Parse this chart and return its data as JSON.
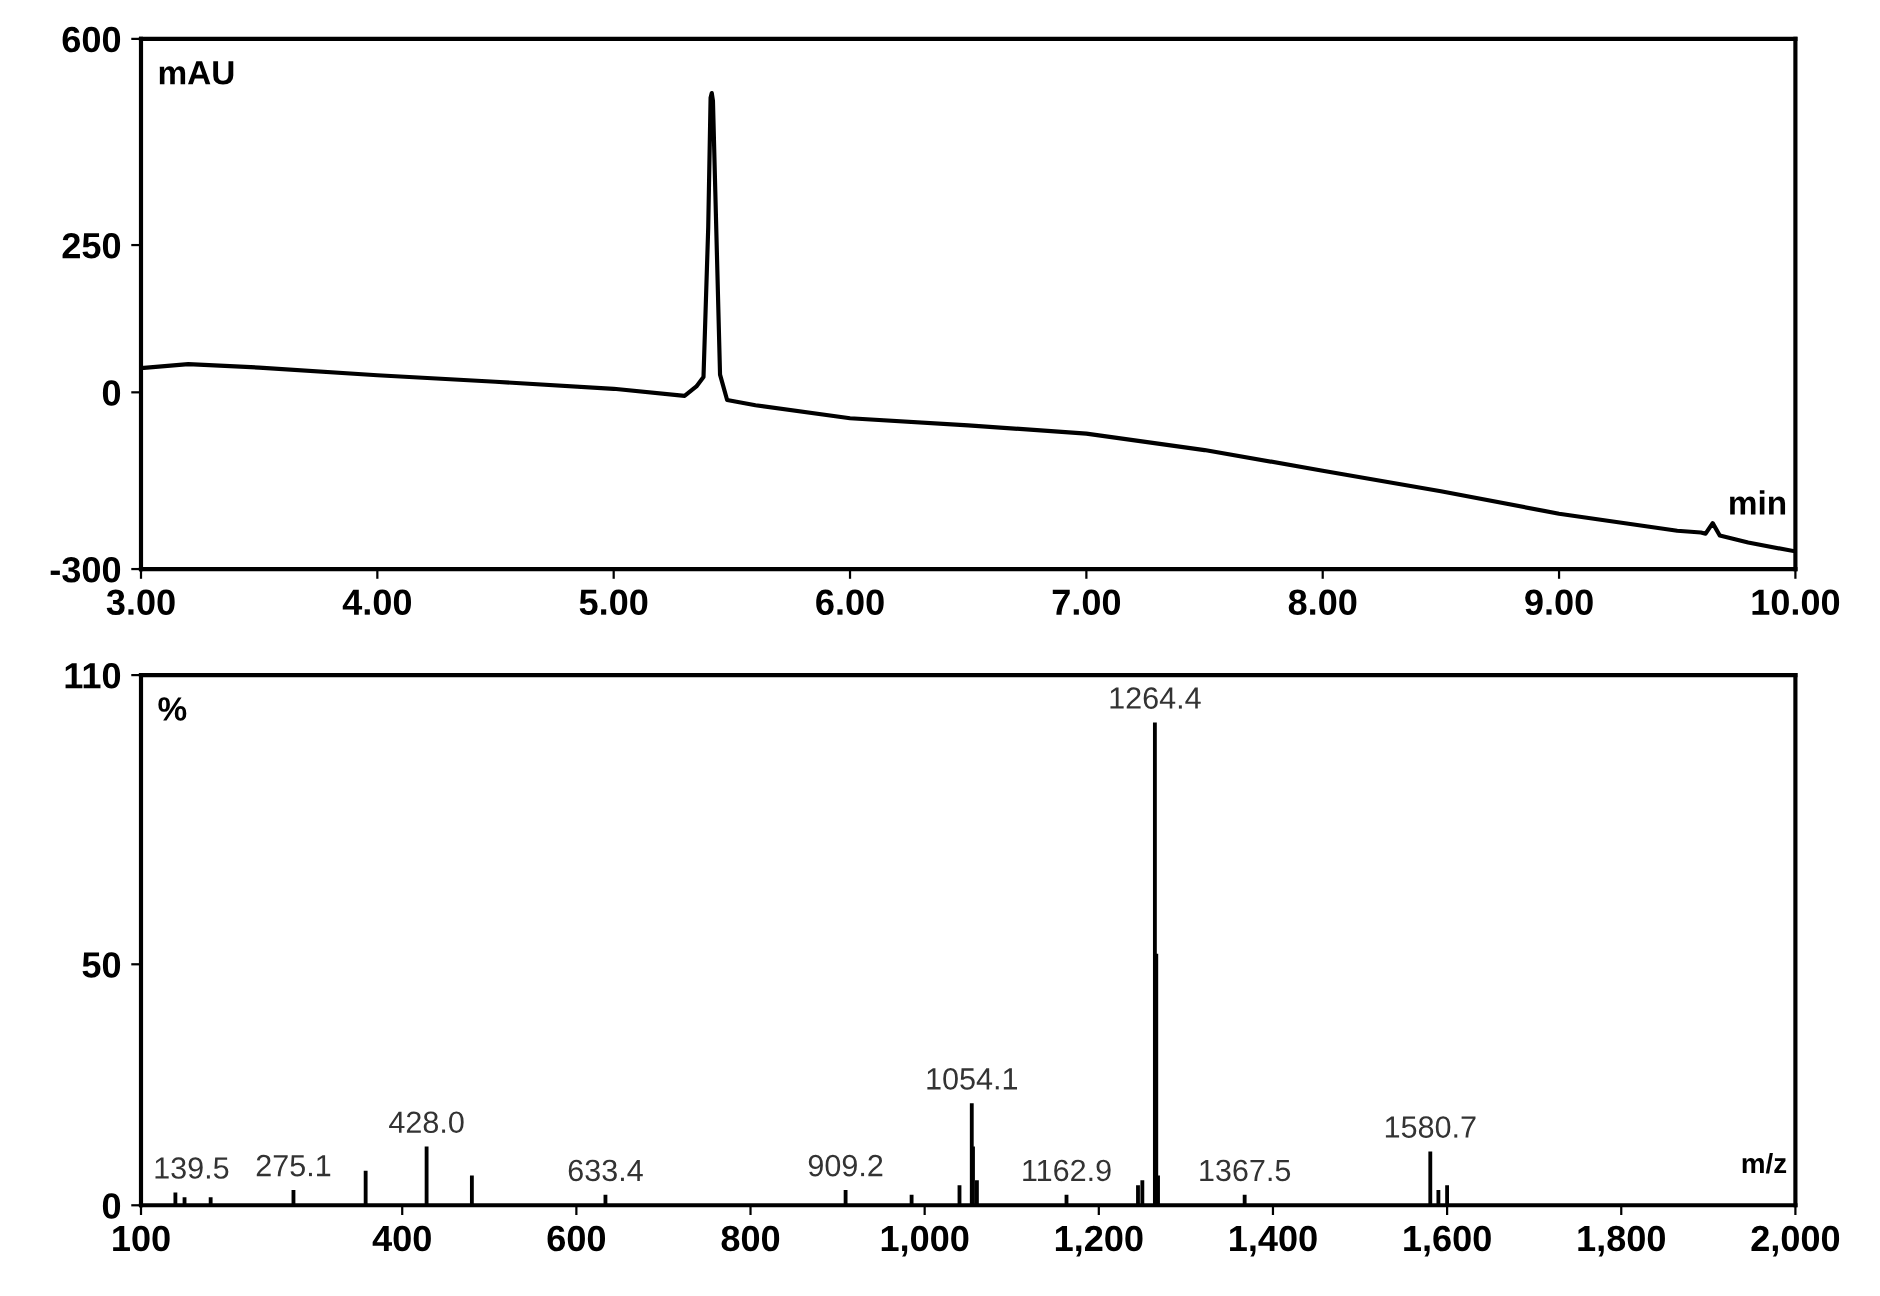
{
  "chart_data": [
    {
      "type": "line",
      "ylabel": "mAU",
      "xlabel": "min",
      "x": [
        3.0,
        3.2,
        3.5,
        4.0,
        4.5,
        5.0,
        5.3,
        5.35,
        5.38,
        5.4,
        5.41,
        5.415,
        5.42,
        5.43,
        5.45,
        5.48,
        5.6,
        6.0,
        6.5,
        7.0,
        7.5,
        8.0,
        8.5,
        9.0,
        9.5,
        9.6,
        9.62,
        9.65,
        9.68,
        9.8,
        10.0
      ],
      "series": [
        {
          "color": "#000000",
          "values": [
            41,
            48,
            42,
            29,
            18,
            6,
            -6,
            10,
            26,
            280,
            500,
            508,
            495,
            340,
            30,
            -13,
            -22,
            -44,
            -56,
            -70,
            -98,
            -133,
            -168,
            -206,
            -235,
            -238,
            -240,
            -222,
            -243,
            -255,
            -270
          ]
        }
      ],
      "xlim": [
        3.0,
        10.0
      ],
      "ylim": [
        -300,
        600
      ],
      "xticks": [
        {
          "value": 3,
          "label": "3.00"
        },
        {
          "value": 4,
          "label": "4.00"
        },
        {
          "value": 5,
          "label": "5.00"
        },
        {
          "value": 6,
          "label": "6.00"
        },
        {
          "value": 7,
          "label": "7.00"
        },
        {
          "value": 8,
          "label": "8.00"
        },
        {
          "value": 9,
          "label": "9.00"
        },
        {
          "value": 10,
          "label": "10.00"
        }
      ],
      "yticks": [
        -300,
        0,
        250,
        600
      ],
      "grid": false,
      "legend": false
    },
    {
      "type": "bar",
      "ylabel": "%",
      "xlabel": "m/z",
      "x": [
        139.5,
        150,
        180,
        275.1,
        358,
        428.0,
        480,
        633.4,
        909.2,
        985,
        1040,
        1054.1,
        1055.5,
        1060,
        1162.9,
        1245,
        1250,
        1264.4,
        1266,
        1268,
        1367.5,
        1580.7,
        1590,
        1600
      ],
      "series": [
        {
          "color": "#000000",
          "values": [
            2.5,
            1.5,
            1.5,
            3,
            7,
            12,
            6,
            2,
            3,
            2,
            4,
            21,
            12,
            5,
            2,
            4,
            5,
            100,
            52,
            6,
            2,
            11,
            3,
            4
          ]
        }
      ],
      "xlim": [
        100,
        2000
      ],
      "ylim": [
        0,
        110
      ],
      "xticks": [
        100,
        400,
        600,
        800,
        {
          "value": 1000,
          "label": "1,000"
        },
        {
          "value": 1200,
          "label": "1,200"
        },
        {
          "value": 1400,
          "label": "1,400"
        },
        {
          "value": 1600,
          "label": "1,600"
        },
        {
          "value": 1800,
          "label": "1,800"
        },
        {
          "value": 2000,
          "label": "2,000"
        }
      ],
      "yticks": [
        0,
        50,
        110
      ],
      "grid": false,
      "legend": false,
      "annotations": [
        {
          "text": "139.5",
          "x": 139.5,
          "y": 2.5
        },
        {
          "text": "275.1",
          "x": 275.1,
          "y": 3
        },
        {
          "text": "428.0",
          "x": 428.0,
          "y": 12
        },
        {
          "text": "633.4",
          "x": 633.4,
          "y": 2
        },
        {
          "text": "909.2",
          "x": 909.2,
          "y": 3
        },
        {
          "text": "1054.1",
          "x": 1054.1,
          "y": 21
        },
        {
          "text": "1162.9",
          "x": 1162.9,
          "y": 2
        },
        {
          "text": "1264.4",
          "x": 1264.4,
          "y": 100
        },
        {
          "text": "1367.5",
          "x": 1367.5,
          "y": 2
        },
        {
          "text": "1580.7",
          "x": 1580.7,
          "y": 11
        }
      ]
    }
  ]
}
